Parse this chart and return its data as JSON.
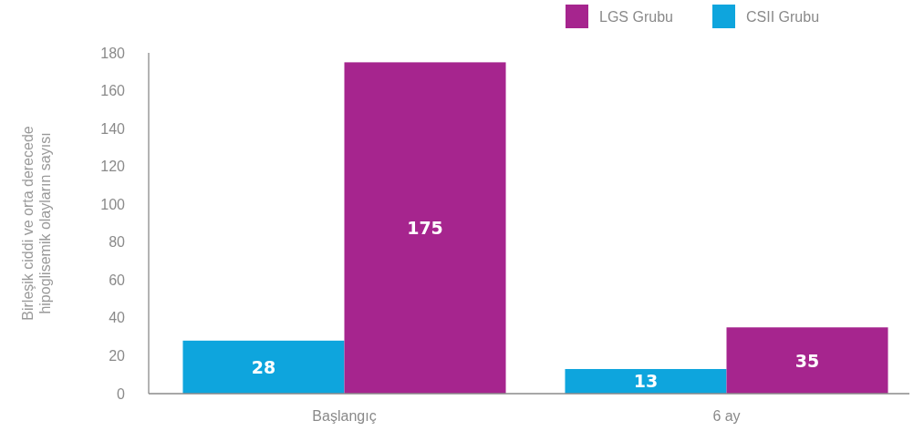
{
  "chart_data": {
    "type": "bar",
    "ylabel": "Birleşik ciddi ve orta derecede\nhipoglisemik olayların sayısı",
    "categories": [
      "Başlangıç",
      "6 ay"
    ],
    "series": [
      {
        "name": "CSII Grubu",
        "color": "#0ea5dd",
        "values": [
          28,
          13
        ]
      },
      {
        "name": "LGS Grubu",
        "color": "#a6258e",
        "values": [
          175,
          35
        ]
      }
    ],
    "ylim": [
      0,
      180
    ],
    "yticks": [
      0,
      20,
      40,
      60,
      80,
      100,
      120,
      140,
      160,
      180
    ],
    "data_labels": true,
    "legend": "top right",
    "grid": false
  }
}
